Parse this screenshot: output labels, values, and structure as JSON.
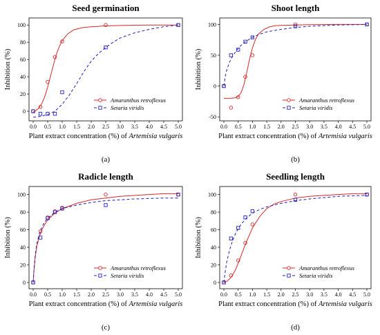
{
  "colors": {
    "amaranthus": "#d62728",
    "setaria": "#1f1fbf"
  },
  "chart_data": [
    {
      "type": "scatter",
      "panel": "(a)",
      "title": "Seed germination",
      "xlabel_prefix": "Plant extract concentration (%) of",
      "xlabel_species": "Artemisia vulgaris",
      "ylabel": "Inhibition (%)",
      "xlim": [
        0,
        5
      ],
      "ylim": [
        -8,
        105
      ],
      "xticks": [
        0,
        0.5,
        1,
        1.5,
        2,
        2.5,
        3,
        3.5,
        4,
        4.5,
        5
      ],
      "xtick_labels": [
        "0.0",
        "0.5",
        "1.0",
        "1.5",
        "2.0",
        "2.5",
        "3.0",
        "3.5",
        "4.0",
        "4.5",
        "5.0"
      ],
      "yticks": [
        0,
        20,
        40,
        60,
        80,
        100
      ],
      "ytick_labels": [
        "0",
        "20",
        "40",
        "60",
        "80",
        "100"
      ],
      "legend_position": "bottom-right",
      "series": [
        {
          "name": "Amaranthus retroflexus",
          "marker": "circle",
          "line": "solid",
          "color_key": "amaranthus",
          "x": [
            0,
            0.25,
            0.5,
            0.75,
            1.0,
            2.5,
            5.0
          ],
          "y": [
            0,
            5,
            34,
            63,
            81,
            100,
            100
          ],
          "fit_x": [
            0,
            0.1,
            0.2,
            0.3,
            0.4,
            0.5,
            0.6,
            0.7,
            0.8,
            0.9,
            1.0,
            1.2,
            1.4,
            1.7,
            2.0,
            2.5,
            3.0,
            3.5,
            4.0,
            4.5,
            5.0
          ],
          "fit_y": [
            -1,
            1,
            4,
            9,
            17,
            28,
            41,
            54,
            66,
            75,
            82,
            90,
            94.5,
            97,
            98,
            99,
            99.5,
            99.8,
            100,
            100,
            100
          ]
        },
        {
          "name": "Setaria viridis",
          "marker": "square",
          "line": "dashed",
          "color_key": "setaria",
          "x": [
            0,
            0.25,
            0.5,
            0.75,
            1.0,
            2.5,
            5.0
          ],
          "y": [
            0,
            -3,
            -3,
            -3,
            22,
            74,
            100
          ],
          "fit_x": [
            0,
            0.25,
            0.5,
            0.75,
            1.0,
            1.25,
            1.5,
            1.75,
            2.0,
            2.25,
            2.5,
            2.75,
            3.0,
            3.5,
            4.0,
            4.5,
            5.0
          ],
          "fit_y": [
            -7,
            -6,
            -4,
            0,
            8,
            19,
            32,
            46,
            58,
            67,
            74,
            80,
            85,
            91,
            95,
            98,
            100
          ]
        }
      ]
    },
    {
      "type": "scatter",
      "panel": "(b)",
      "title": "Shoot length",
      "xlabel_prefix": "Plant extract concentration (%) of",
      "xlabel_species": "Artemisia vulgaris",
      "ylabel": "Inhibition (%)",
      "xlim": [
        0,
        5
      ],
      "ylim": [
        -52,
        106
      ],
      "xticks": [
        0,
        0.5,
        1,
        1.5,
        2,
        2.5,
        3,
        3.5,
        4,
        4.5,
        5
      ],
      "xtick_labels": [
        "0.0",
        "0.5",
        "1.0",
        "1.5",
        "2.0",
        "2.5",
        "3.0",
        "3.5",
        "4.0",
        "4.5",
        "5.0"
      ],
      "yticks": [
        -50,
        0,
        50,
        100
      ],
      "ytick_labels": [
        "-50",
        "0",
        "50",
        "100"
      ],
      "legend_position": "bottom-right",
      "series": [
        {
          "name": "Amaranthus retroflexus",
          "marker": "circle",
          "line": "solid",
          "color_key": "amaranthus",
          "x": [
            0,
            0.25,
            0.5,
            0.75,
            1.0,
            2.5,
            5.0
          ],
          "y": [
            0,
            -35,
            -18,
            15,
            50,
            100,
            100
          ],
          "fit_x": [
            0,
            0.2,
            0.4,
            0.5,
            0.6,
            0.7,
            0.8,
            0.9,
            1.0,
            1.1,
            1.2,
            1.4,
            1.6,
            1.8,
            2.0,
            2.5,
            3.0,
            4.0,
            5.0
          ],
          "fit_y": [
            -20,
            -20,
            -19,
            -17,
            -11,
            2,
            22,
            44,
            62,
            75,
            84,
            92,
            96,
            98,
            98.5,
            99,
            99.5,
            100,
            100
          ]
        },
        {
          "name": "Setaria viridis",
          "marker": "square",
          "line": "dashed",
          "color_key": "setaria",
          "x": [
            0,
            0.25,
            0.5,
            0.75,
            1.0,
            2.5,
            5.0
          ],
          "y": [
            0,
            50,
            59,
            72,
            79,
            97,
            100
          ],
          "fit_x": [
            0,
            0.05,
            0.1,
            0.2,
            0.3,
            0.4,
            0.5,
            0.6,
            0.75,
            1.0,
            1.25,
            1.5,
            2.0,
            2.5,
            3.0,
            4.0,
            5.0
          ],
          "fit_y": [
            0,
            16,
            26,
            39,
            48,
            55,
            61,
            66,
            72,
            79,
            84,
            88,
            92,
            95,
            97,
            99,
            100
          ]
        }
      ]
    },
    {
      "type": "scatter",
      "panel": "(c)",
      "title": "Radicle length",
      "xlabel_prefix": "Plant extract concentration (%) of",
      "xlabel_species": "Artemisia vulgaris",
      "ylabel": "Inhibition (%)",
      "xlim": [
        0,
        5
      ],
      "ylim": [
        -4,
        106
      ],
      "xticks": [
        0,
        0.5,
        1,
        1.5,
        2,
        2.5,
        3,
        3.5,
        4,
        4.5,
        5
      ],
      "xtick_labels": [
        "0.0",
        "0.5",
        "1.0",
        "1.5",
        "2.0",
        "2.5",
        "3.0",
        "3.5",
        "4.0",
        "4.5",
        "5.0"
      ],
      "yticks": [
        0,
        20,
        40,
        60,
        80,
        100
      ],
      "ytick_labels": [
        "0",
        "20",
        "40",
        "60",
        "80",
        "100"
      ],
      "legend_position": "bottom-right",
      "series": [
        {
          "name": "Amaranthus retroflexus",
          "marker": "circle",
          "line": "solid",
          "color_key": "amaranthus",
          "x": [
            0,
            0.25,
            0.5,
            0.75,
            1.0,
            2.5,
            5.0
          ],
          "y": [
            0,
            58,
            74,
            81,
            85,
            100,
            100
          ],
          "fit_x": [
            0,
            0.03,
            0.07,
            0.12,
            0.2,
            0.3,
            0.4,
            0.5,
            0.75,
            1.0,
            1.5,
            2.0,
            2.5,
            3.0,
            3.5,
            4.0,
            4.5,
            5.0
          ],
          "fit_y": [
            0,
            15,
            28,
            40,
            51,
            60,
            66,
            71,
            79,
            84,
            90,
            94,
            96,
            98,
            99,
            100,
            101,
            101
          ]
        },
        {
          "name": "Setaria viridis",
          "marker": "square",
          "line": "dashed",
          "color_key": "setaria",
          "x": [
            0,
            0.25,
            0.5,
            0.75,
            1.0,
            2.5,
            5.0
          ],
          "y": [
            0,
            51,
            73,
            80,
            84,
            88,
            100
          ],
          "fit_x": [
            0,
            0.03,
            0.07,
            0.12,
            0.2,
            0.3,
            0.4,
            0.5,
            0.75,
            1.0,
            1.5,
            2.0,
            2.5,
            3.0,
            3.5,
            4.0,
            4.5,
            5.0
          ],
          "fit_y": [
            0,
            16,
            30,
            43,
            54,
            63,
            69,
            73,
            80,
            84,
            88,
            91,
            93,
            94,
            95,
            95.5,
            96,
            96
          ]
        }
      ]
    },
    {
      "type": "scatter",
      "panel": "(d)",
      "title": "Seedling length",
      "xlabel_prefix": "Plant extract concentration (%) of",
      "xlabel_species": "Artemisia vulgaris",
      "ylabel": "Inhibition (%)",
      "xlim": [
        0,
        5
      ],
      "ylim": [
        -4,
        106
      ],
      "xticks": [
        0,
        0.5,
        1,
        1.5,
        2,
        2.5,
        3,
        3.5,
        4,
        4.5,
        5
      ],
      "xtick_labels": [
        "0.0",
        "0.5",
        "1.0",
        "1.5",
        "2.0",
        "2.5",
        "3.0",
        "3.5",
        "4.0",
        "4.5",
        "5.0"
      ],
      "yticks": [
        0,
        20,
        40,
        60,
        80,
        100
      ],
      "ytick_labels": [
        "0",
        "20",
        "40",
        "60",
        "80",
        "100"
      ],
      "legend_position": "bottom-right",
      "series": [
        {
          "name": "Amaranthus retroflexus",
          "marker": "circle",
          "line": "solid",
          "color_key": "amaranthus",
          "x": [
            0,
            0.25,
            0.5,
            0.75,
            1.0,
            2.5,
            5.0
          ],
          "y": [
            0,
            8,
            25,
            45,
            66,
            100,
            100
          ],
          "fit_x": [
            0,
            0.1,
            0.2,
            0.3,
            0.4,
            0.5,
            0.6,
            0.7,
            0.8,
            1.0,
            1.25,
            1.5,
            1.75,
            2.0,
            2.5,
            3.0,
            3.5,
            4.0,
            4.5,
            5.0
          ],
          "fit_y": [
            0,
            1,
            4,
            8,
            14,
            22,
            30,
            39,
            47,
            62,
            75,
            84,
            89,
            92,
            96,
            98,
            99,
            100,
            101,
            101
          ]
        },
        {
          "name": "Setaria viridis",
          "marker": "square",
          "line": "dashed",
          "color_key": "setaria",
          "x": [
            0,
            0.25,
            0.5,
            0.75,
            1.0,
            2.5,
            5.0
          ],
          "y": [
            0,
            50,
            62,
            74,
            81,
            94,
            100
          ],
          "fit_x": [
            0,
            0.05,
            0.1,
            0.2,
            0.3,
            0.4,
            0.5,
            0.6,
            0.75,
            1.0,
            1.25,
            1.5,
            2.0,
            2.5,
            3.0,
            4.0,
            5.0
          ],
          "fit_y": [
            0,
            13,
            23,
            37,
            47,
            55,
            61,
            66,
            72,
            79,
            83,
            86,
            90,
            93,
            95,
            98,
            99
          ]
        }
      ]
    }
  ]
}
